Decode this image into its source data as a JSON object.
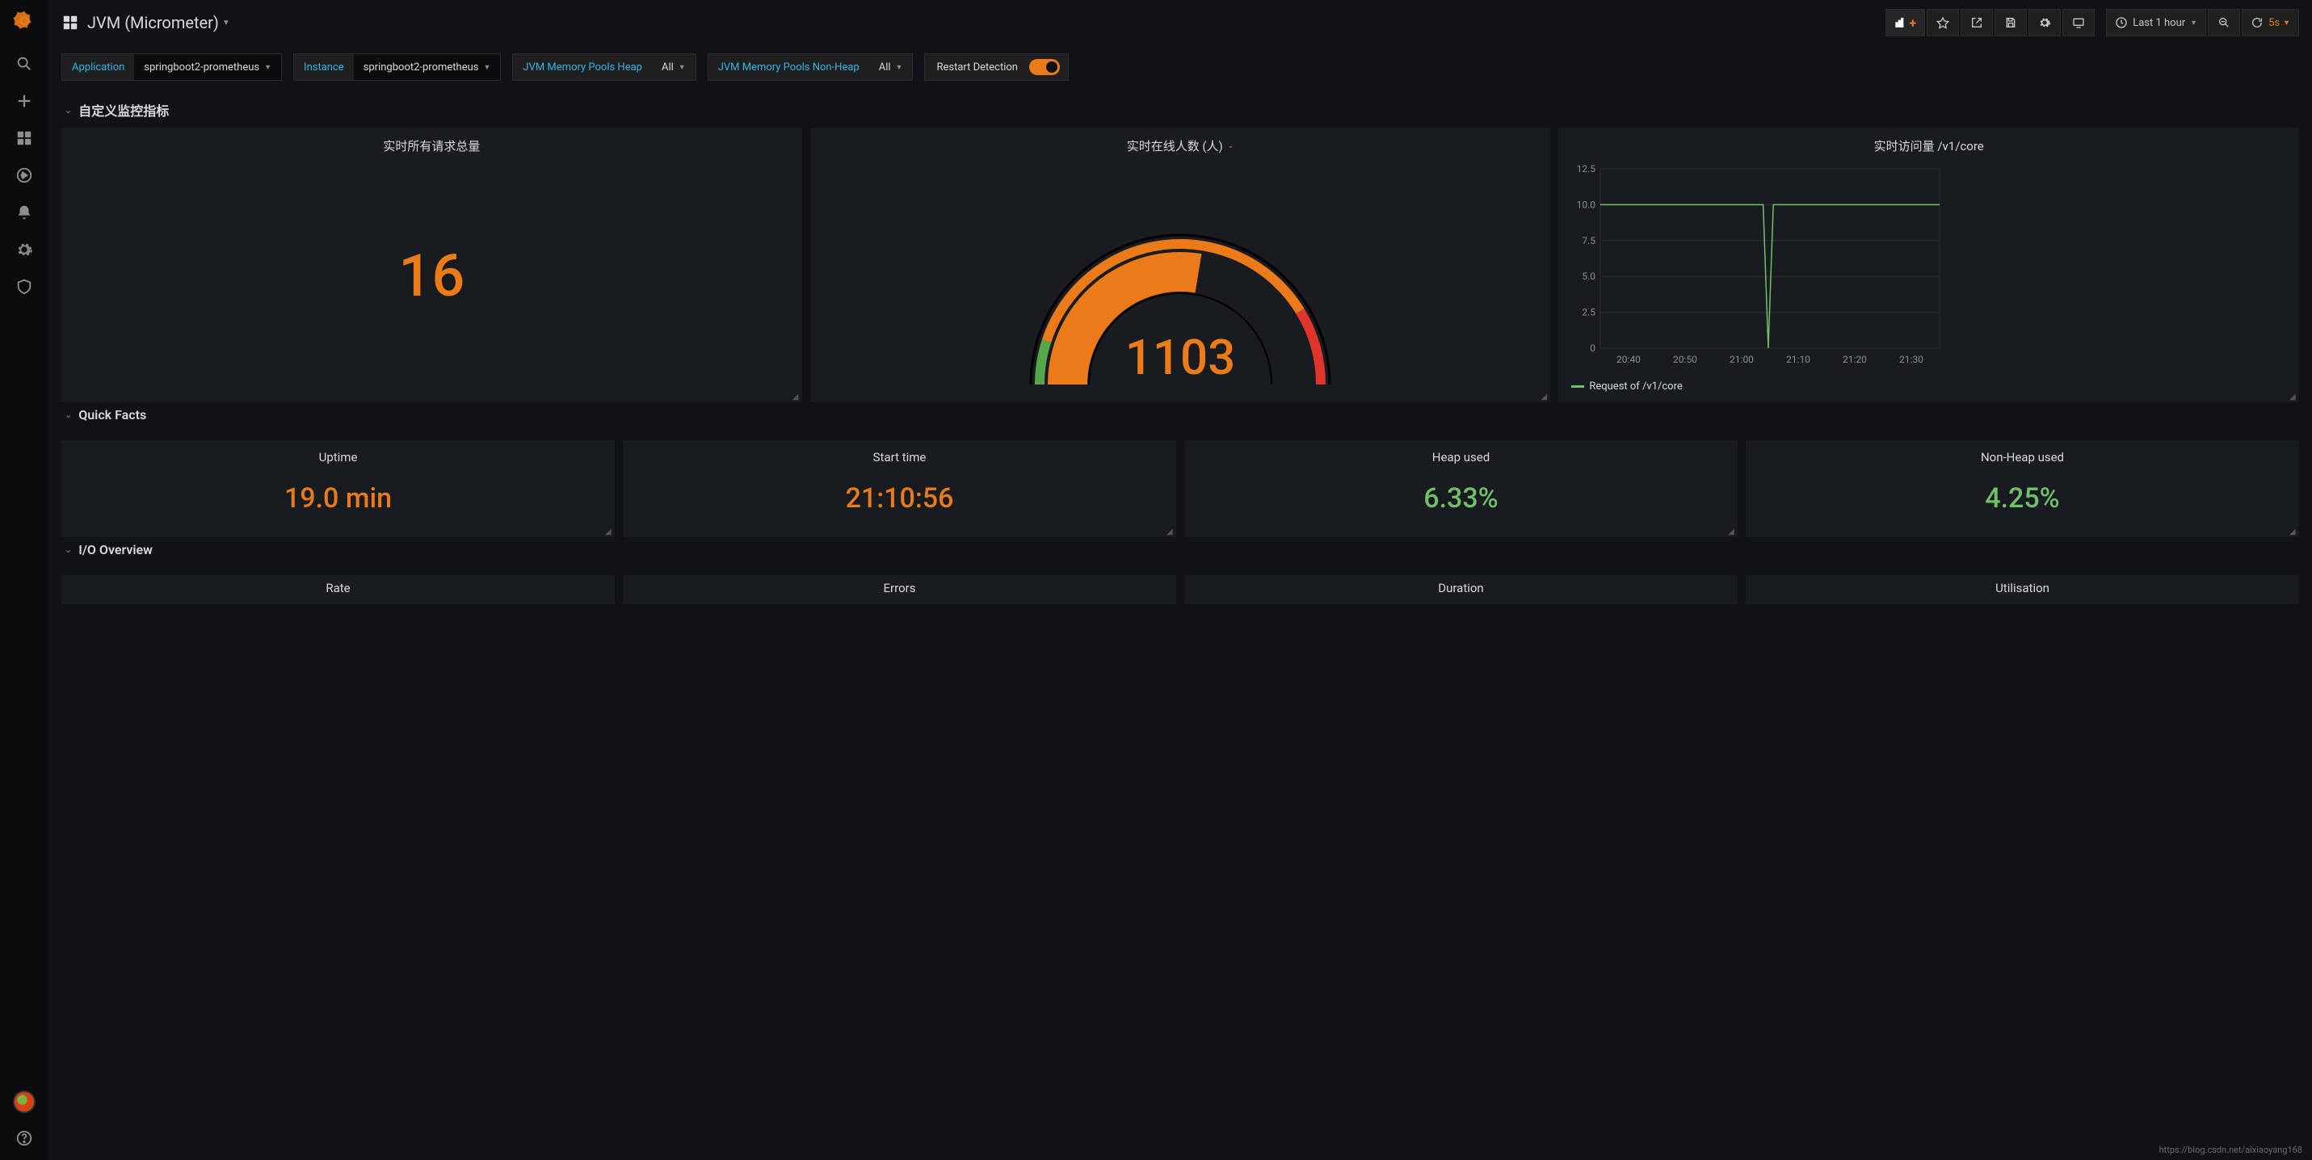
{
  "header": {
    "title": "JVM (Micrometer)",
    "time_range": "Last 1 hour",
    "refresh_interval": "5s"
  },
  "variables": {
    "application": {
      "label": "Application",
      "value": "springboot2-prometheus"
    },
    "instance": {
      "label": "Instance",
      "value": "springboot2-prometheus"
    },
    "heap": {
      "label": "JVM Memory Pools Heap",
      "value": "All"
    },
    "nonheap": {
      "label": "JVM Memory Pools Non-Heap",
      "value": "All"
    },
    "restart": {
      "label": "Restart Detection",
      "on": true
    }
  },
  "sections": {
    "custom": {
      "title": "自定义监控指标",
      "panels": {
        "total_requests": {
          "title": "实时所有请求总量",
          "value": "16",
          "color": "#eb7b18"
        },
        "online_users": {
          "title": "实时在线人数 (人)",
          "value": "1103",
          "value_color": "#eb7b18",
          "gauge": {
            "min": 0,
            "max": 2000,
            "value": 1103,
            "fill_color": "#eb7b18",
            "segments": [
              {
                "start": 0,
                "end": 200,
                "color": "#56a64b"
              },
              {
                "start": 200,
                "end": 1650,
                "color": "#eb7b18"
              },
              {
                "start": 1650,
                "end": 2000,
                "color": "#e0352b"
              }
            ]
          }
        },
        "v1core": {
          "title": "实时访问量 /v1/core",
          "legend": "Request of /v1/core",
          "line_color": "#73bf69",
          "ylim": [
            0,
            12.5
          ],
          "ytick_step": 2.5,
          "x_labels": [
            "20:40",
            "20:50",
            "21:00",
            "21:10",
            "21:20",
            "21:30"
          ],
          "series": [
            [
              0,
              10
            ],
            [
              48,
              10
            ],
            [
              49.5,
              0
            ],
            [
              51,
              10
            ],
            [
              100,
              10
            ]
          ]
        }
      }
    },
    "quick_facts": {
      "title": "Quick Facts",
      "panels": [
        {
          "title": "Uptime",
          "value": "19.0 min",
          "color": "#eb7b18"
        },
        {
          "title": "Start time",
          "value": "21:10:56",
          "color": "#eb7b18"
        },
        {
          "title": "Heap used",
          "value": "6.33%",
          "color": "#73bf69"
        },
        {
          "title": "Non-Heap used",
          "value": "4.25%",
          "color": "#73bf69"
        }
      ]
    },
    "io_overview": {
      "title": "I/O Overview",
      "panels": [
        {
          "title": "Rate"
        },
        {
          "title": "Errors"
        },
        {
          "title": "Duration"
        },
        {
          "title": "Utilisation"
        }
      ]
    }
  },
  "footer_url": "https://blog.csdn.net/aixiaoyang168"
}
